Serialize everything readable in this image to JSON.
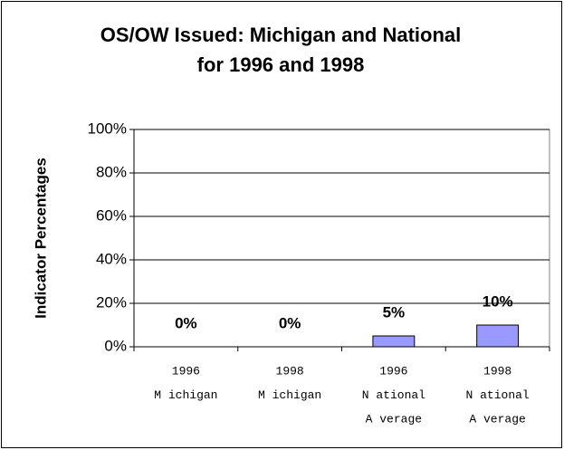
{
  "chart_data": {
    "type": "bar",
    "title": [
      "OS/OW Issued: Michigan and National",
      "for 1996 and 1998"
    ],
    "y_label": "Indicator Percentages",
    "categories": [
      [
        "1996",
        "M ichigan"
      ],
      [
        "1998",
        "M ichigan"
      ],
      [
        "1996",
        "N ational",
        "A verage"
      ],
      [
        "1998",
        "N ational",
        "A verage"
      ]
    ],
    "values": [
      0,
      0,
      5,
      10
    ],
    "value_labels": [
      "0%",
      "0%",
      "5%",
      "10%"
    ],
    "color": "#9999ff",
    "ylim": [
      0,
      100
    ],
    "yticks": [
      {
        "value": 0,
        "label": "0%"
      },
      {
        "value": 20,
        "label": "20%"
      },
      {
        "value": 40,
        "label": "40%"
      },
      {
        "value": 60,
        "label": "60%"
      },
      {
        "value": 80,
        "label": "80%"
      },
      {
        "value": 100,
        "label": "100%"
      }
    ],
    "grid": true
  }
}
